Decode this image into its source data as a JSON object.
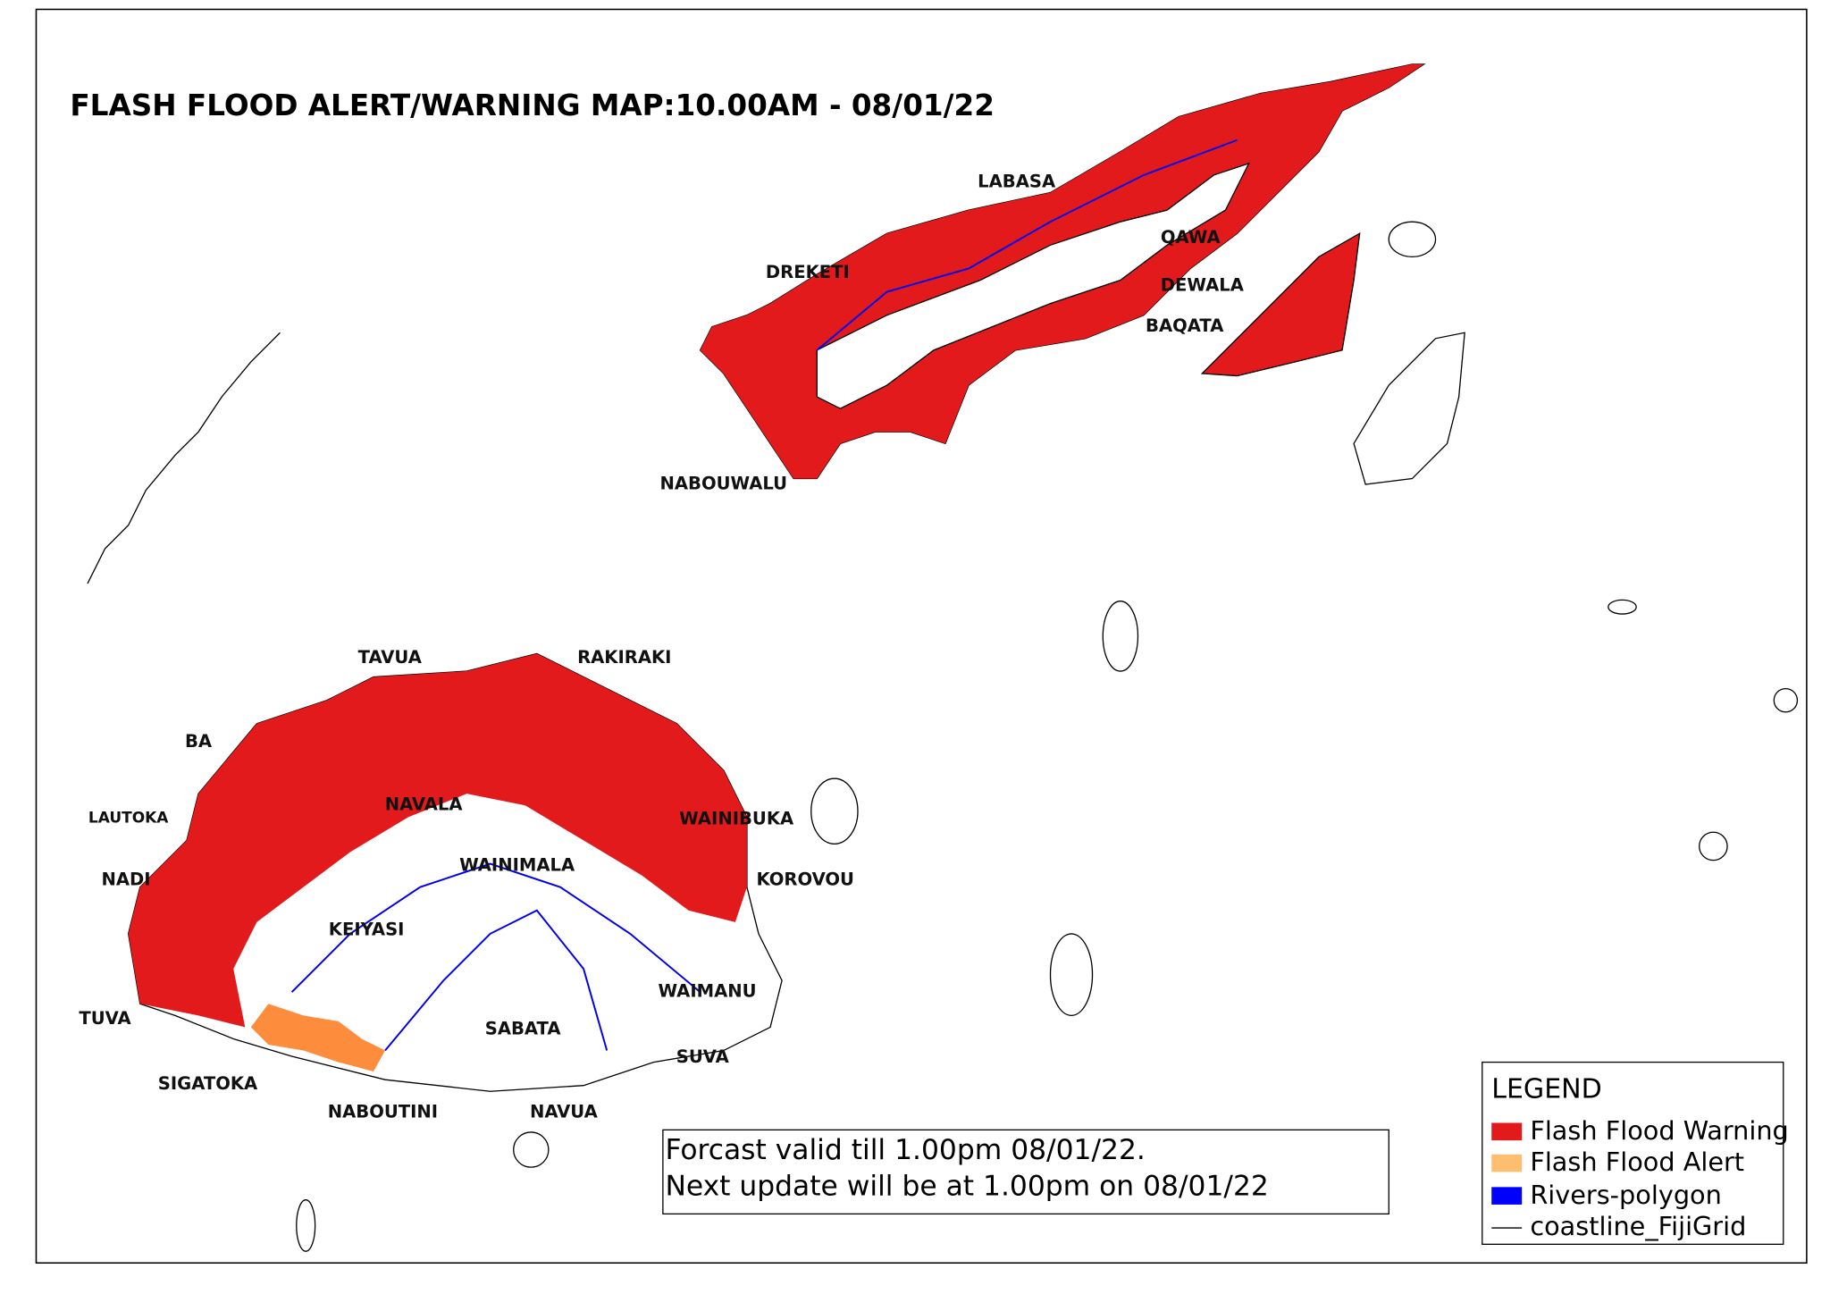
{
  "title": "FLASH FLOOD ALERT/WARNING MAP:10.00AM - 08/01/22",
  "places": [
    "LABASA",
    "QAWA",
    "DREKETI",
    "DEWALA",
    "BAQATA",
    "NABOUWALU",
    "TAVUA",
    "RAKIRAKI",
    "BA",
    "LAUTOKA",
    "NAVALA",
    "WAINIBUKA",
    "WAINIMALA",
    "NADI",
    "KOROVOU",
    "KEIYASI",
    "WAIMANU",
    "TUVA",
    "SABATA",
    "SUVA",
    "SIGATOKA",
    "NABOUTINI",
    "NAVUA"
  ],
  "forecast": [
    "Forcast valid till 1.00pm 08/01/22.",
    "Next update will be at 1.00pm on 08/01/22"
  ],
  "legend": {
    "title": "LEGEND",
    "items": [
      "Flash Flood Warning",
      "Flash Flood Alert",
      "Rivers-polygon",
      "coastline_FijiGrid"
    ]
  }
}
